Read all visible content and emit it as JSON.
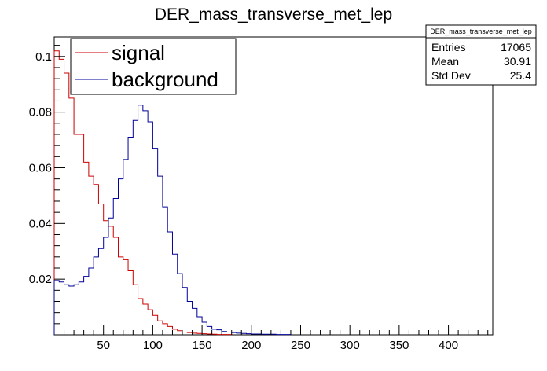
{
  "chart_data": {
    "type": "histogram",
    "title": "DER_mass_transverse_met_lep",
    "xlabel": "",
    "ylabel": "",
    "xlim": [
      0,
      445
    ],
    "ylim": [
      0,
      0.107
    ],
    "bin_width": 5,
    "x_ticks": [
      50,
      100,
      150,
      200,
      250,
      300,
      350,
      400
    ],
    "y_ticks": [
      0.02,
      0.04,
      0.06,
      0.08,
      0.1
    ],
    "y_tick_labels": [
      "0.02",
      "0.04",
      "0.06",
      "0.08",
      "0.1"
    ],
    "grid": false,
    "legend": {
      "placement": "top-left",
      "entries": [
        {
          "label": "signal",
          "color": "#cc0000"
        },
        {
          "label": "background",
          "color": "#000099"
        }
      ]
    },
    "stats_box": {
      "title": "DER_mass_transverse_met_lep",
      "rows": [
        {
          "label": "Entries",
          "value": "17065"
        },
        {
          "label": "Mean",
          "value": "30.91"
        },
        {
          "label": "Std Dev",
          "value": "25.4"
        }
      ]
    },
    "series": [
      {
        "name": "signal",
        "color": "#cc0000",
        "values": [
          0.102,
          0.099,
          0.094,
          0.085,
          0.072,
          0.072,
          0.062,
          0.057,
          0.054,
          0.047,
          0.041,
          0.039,
          0.035,
          0.028,
          0.027,
          0.023,
          0.018,
          0.013,
          0.011,
          0.009,
          0.007,
          0.005,
          0.004,
          0.003,
          0.002,
          0.0015,
          0.001,
          0.0008,
          0.0006,
          0.0005,
          0.0004,
          0.0003,
          0.0002,
          0.0001,
          0.0001,
          0.0001
        ]
      },
      {
        "name": "background",
        "color": "#000099",
        "values": [
          0.0195,
          0.019,
          0.018,
          0.0175,
          0.018,
          0.019,
          0.021,
          0.024,
          0.028,
          0.031,
          0.035,
          0.042,
          0.049,
          0.056,
          0.063,
          0.071,
          0.077,
          0.0825,
          0.0805,
          0.0765,
          0.067,
          0.057,
          0.046,
          0.037,
          0.029,
          0.022,
          0.017,
          0.012,
          0.0095,
          0.0065,
          0.0045,
          0.003,
          0.002,
          0.0018,
          0.0012,
          0.001,
          0.0008,
          0.0006,
          0.0005,
          0.0004,
          0.0003,
          0.0003,
          0.0002,
          0.0002,
          0.0002,
          0.0001,
          0.0001,
          0.0001
        ]
      }
    ]
  }
}
